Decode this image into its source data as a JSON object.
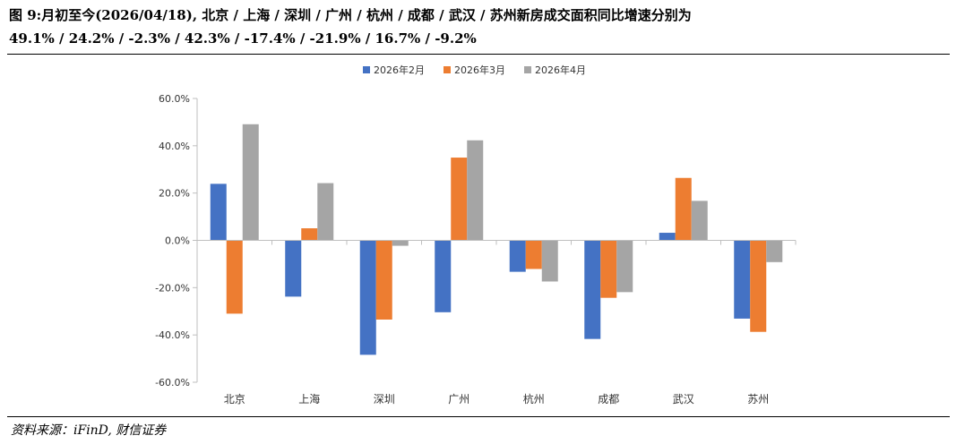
{
  "header": {
    "title_line1": "图 9:月初至今(2026/04/18), 北京 / 上海 / 深圳 / 广州 / 杭州 / 成都 / 武汉 / 苏州新房成交面积同比增速分别为",
    "title_line2": "49.1% / 24.2% / -2.3% / 42.3% / -17.4% / -21.9% / 16.7% / -9.2%"
  },
  "footer": {
    "source": "资料来源：iFinD, 财信证券"
  },
  "chart_data": {
    "type": "bar",
    "title": "",
    "xlabel": "",
    "ylabel": "",
    "categories": [
      "北京",
      "上海",
      "深圳",
      "广州",
      "杭州",
      "成都",
      "武汉",
      "苏州"
    ],
    "series": [
      {
        "name": "2026年2月",
        "color": "#4472C4",
        "values": [
          23.9,
          -23.8,
          -48.4,
          -30.4,
          -13.3,
          -41.7,
          3.2,
          -33.1
        ]
      },
      {
        "name": "2026年3月",
        "color": "#ED7D31",
        "values": [
          -31.0,
          5.1,
          -33.5,
          35.0,
          -12.1,
          -24.3,
          26.4,
          -38.7
        ]
      },
      {
        "name": "2026年4月",
        "color": "#A5A5A5",
        "values": [
          49.1,
          24.2,
          -2.3,
          42.3,
          -17.4,
          -21.9,
          16.7,
          -9.2
        ]
      }
    ],
    "ylim": [
      -60,
      60
    ],
    "yticks": [
      60,
      40,
      20,
      0,
      -20,
      -40,
      -60
    ],
    "ytick_labels": [
      "60.0%",
      "40.0%",
      "20.0%",
      "0.0%",
      "-20.0%",
      "-40.0%",
      "-60.0%"
    ],
    "legend_position": "top-center",
    "grid": false
  }
}
